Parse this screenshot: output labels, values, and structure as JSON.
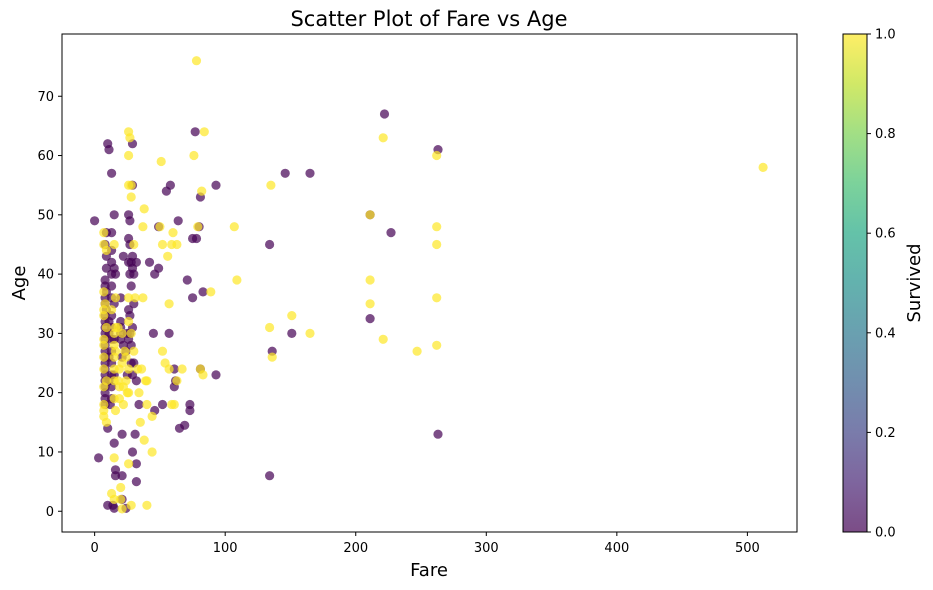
{
  "chart_data": {
    "type": "scatter",
    "title": "Scatter Plot of Fare vs Age",
    "xlabel": "Fare",
    "ylabel": "Age",
    "xlim": [
      -25,
      538
    ],
    "ylim": [
      -3.5,
      80.5
    ],
    "xticks": [
      0,
      100,
      200,
      300,
      400,
      500
    ],
    "yticks": [
      0,
      10,
      20,
      30,
      40,
      50,
      60,
      70
    ],
    "grid": false,
    "colorbar": {
      "label": "Survived",
      "range": [
        0.0,
        1.0
      ],
      "ticks": [
        "0.0",
        "0.2",
        "0.4",
        "0.6",
        "0.8",
        "1.0"
      ],
      "colormap": "viridis"
    },
    "marker_alpha": 0.7,
    "colors": {
      "not_survived": "#440154",
      "survived": "#fde725"
    },
    "series": [
      {
        "survived": 0,
        "points": [
          [
            0,
            49
          ],
          [
            3,
            9
          ],
          [
            8,
            45
          ],
          [
            8,
            39
          ],
          [
            8,
            38
          ],
          [
            8,
            36
          ],
          [
            8,
            35
          ],
          [
            8,
            33
          ],
          [
            8,
            32
          ],
          [
            8,
            31
          ],
          [
            8,
            30
          ],
          [
            8,
            29
          ],
          [
            8,
            28
          ],
          [
            8,
            27
          ],
          [
            8,
            26
          ],
          [
            8,
            25
          ],
          [
            8,
            24
          ],
          [
            8,
            23
          ],
          [
            8,
            22
          ],
          [
            8,
            21
          ],
          [
            8,
            20
          ],
          [
            8,
            19
          ],
          [
            8,
            18
          ],
          [
            9,
            47
          ],
          [
            9,
            43
          ],
          [
            9,
            41
          ],
          [
            9,
            37
          ],
          [
            9,
            34
          ],
          [
            10,
            62
          ],
          [
            10,
            14
          ],
          [
            10,
            1
          ],
          [
            11,
            61
          ],
          [
            11,
            32
          ],
          [
            11,
            30
          ],
          [
            11,
            26
          ],
          [
            11,
            22
          ],
          [
            12,
            18
          ],
          [
            13,
            57
          ],
          [
            13,
            47
          ],
          [
            13,
            44
          ],
          [
            13,
            42
          ],
          [
            13,
            40
          ],
          [
            13,
            38
          ],
          [
            13,
            36
          ],
          [
            13,
            33
          ],
          [
            13,
            31
          ],
          [
            13,
            29
          ],
          [
            13,
            27
          ],
          [
            13,
            25
          ],
          [
            13,
            23
          ],
          [
            13,
            21
          ],
          [
            13,
            19
          ],
          [
            14,
            1
          ],
          [
            15,
            50
          ],
          [
            15,
            41
          ],
          [
            15,
            35
          ],
          [
            15,
            29
          ],
          [
            15,
            23
          ],
          [
            15,
            11.5
          ],
          [
            15,
            0.5
          ],
          [
            16,
            40
          ],
          [
            16,
            7
          ],
          [
            16,
            6
          ],
          [
            20,
            36
          ],
          [
            20,
            32
          ],
          [
            20,
            31
          ],
          [
            20,
            30
          ],
          [
            20,
            29
          ],
          [
            21,
            26
          ],
          [
            21,
            13
          ],
          [
            21,
            6
          ],
          [
            21,
            2
          ],
          [
            22,
            43
          ],
          [
            22,
            28
          ],
          [
            24,
            27
          ],
          [
            24,
            0.5
          ],
          [
            25,
            30
          ],
          [
            25,
            23
          ],
          [
            26,
            50
          ],
          [
            26,
            46
          ],
          [
            26,
            42
          ],
          [
            26,
            34
          ],
          [
            26,
            29
          ],
          [
            27,
            49
          ],
          [
            27,
            45
          ],
          [
            27,
            40
          ],
          [
            27,
            33
          ],
          [
            27,
            30
          ],
          [
            28,
            42
          ],
          [
            28,
            38
          ],
          [
            28,
            28
          ],
          [
            28,
            25
          ],
          [
            29,
            62
          ],
          [
            29,
            55
          ],
          [
            29,
            43
          ],
          [
            29,
            41
          ],
          [
            29,
            31
          ],
          [
            29,
            23
          ],
          [
            29,
            10
          ],
          [
            30,
            40
          ],
          [
            30,
            35
          ],
          [
            30,
            25
          ],
          [
            31,
            13
          ],
          [
            32,
            42
          ],
          [
            32,
            22
          ],
          [
            32,
            8
          ],
          [
            32,
            5
          ],
          [
            34,
            18
          ],
          [
            42,
            42
          ],
          [
            45,
            30
          ],
          [
            46,
            40
          ],
          [
            46,
            17
          ],
          [
            49,
            48
          ],
          [
            49,
            41
          ],
          [
            52,
            18
          ],
          [
            55,
            54
          ],
          [
            57,
            30
          ],
          [
            58,
            55
          ],
          [
            61,
            24
          ],
          [
            61,
            21
          ],
          [
            62,
            22
          ],
          [
            64,
            49
          ],
          [
            65,
            14
          ],
          [
            69,
            14.5
          ],
          [
            71,
            39
          ],
          [
            73,
            18
          ],
          [
            73,
            17
          ],
          [
            75,
            36
          ],
          [
            75,
            46
          ],
          [
            77,
            64
          ],
          [
            78,
            46
          ],
          [
            80,
            48
          ],
          [
            81,
            53
          ],
          [
            81,
            24
          ],
          [
            83,
            37
          ],
          [
            93,
            55
          ],
          [
            93,
            23
          ],
          [
            134,
            45
          ],
          [
            134,
            6
          ],
          [
            136,
            27
          ],
          [
            146,
            57
          ],
          [
            151,
            30
          ],
          [
            165,
            57
          ],
          [
            211,
            50
          ],
          [
            211,
            32.5
          ],
          [
            222,
            67
          ],
          [
            227,
            47
          ],
          [
            263,
            61
          ],
          [
            263,
            13
          ]
        ]
      },
      {
        "survived": 1,
        "points": [
          [
            7,
            47
          ],
          [
            7,
            45
          ],
          [
            7,
            37
          ],
          [
            7,
            34
          ],
          [
            7,
            33
          ],
          [
            7,
            29
          ],
          [
            7,
            28
          ],
          [
            7,
            26
          ],
          [
            7,
            24
          ],
          [
            7,
            21
          ],
          [
            7,
            18
          ],
          [
            7,
            17
          ],
          [
            7,
            16
          ],
          [
            8,
            35
          ],
          [
            9,
            44
          ],
          [
            9,
            31
          ],
          [
            9,
            22
          ],
          [
            9,
            15
          ],
          [
            13,
            3
          ],
          [
            13,
            34
          ],
          [
            15,
            45
          ],
          [
            15,
            30
          ],
          [
            15,
            28
          ],
          [
            15,
            26
          ],
          [
            15,
            24
          ],
          [
            15,
            22
          ],
          [
            15,
            19
          ],
          [
            15,
            9
          ],
          [
            15,
            2
          ],
          [
            16,
            36
          ],
          [
            16,
            31
          ],
          [
            16,
            27
          ],
          [
            16,
            17
          ],
          [
            18,
            31
          ],
          [
            18,
            22
          ],
          [
            19,
            24
          ],
          [
            19,
            21
          ],
          [
            19,
            19
          ],
          [
            20,
            4
          ],
          [
            20,
            2
          ],
          [
            21,
            0.4
          ],
          [
            21,
            30
          ],
          [
            21,
            25
          ],
          [
            22,
            21
          ],
          [
            22,
            18
          ],
          [
            23,
            27
          ],
          [
            24,
            26
          ],
          [
            24,
            22
          ],
          [
            25,
            20
          ],
          [
            26,
            64
          ],
          [
            26,
            60
          ],
          [
            26,
            55
          ],
          [
            26,
            36
          ],
          [
            26,
            32
          ],
          [
            26,
            24
          ],
          [
            26,
            20
          ],
          [
            26,
            8
          ],
          [
            27,
            63
          ],
          [
            28,
            55
          ],
          [
            28,
            53
          ],
          [
            28,
            30
          ],
          [
            28,
            1
          ],
          [
            30,
            45
          ],
          [
            30,
            27
          ],
          [
            31,
            36
          ],
          [
            33,
            24
          ],
          [
            34,
            20
          ],
          [
            35,
            15
          ],
          [
            36,
            24
          ],
          [
            37,
            48
          ],
          [
            37,
            36
          ],
          [
            38,
            12
          ],
          [
            38,
            51
          ],
          [
            39,
            22
          ],
          [
            40,
            1
          ],
          [
            40,
            18
          ],
          [
            40,
            22
          ],
          [
            44,
            16
          ],
          [
            44,
            10
          ],
          [
            50,
            48
          ],
          [
            51,
            59
          ],
          [
            52,
            27
          ],
          [
            52,
            45
          ],
          [
            54,
            25
          ],
          [
            56,
            43
          ],
          [
            57,
            35
          ],
          [
            57,
            24
          ],
          [
            59,
            45
          ],
          [
            59,
            18
          ],
          [
            60,
            47
          ],
          [
            61,
            18
          ],
          [
            63,
            45
          ],
          [
            63,
            22
          ],
          [
            67,
            24
          ],
          [
            76,
            60
          ],
          [
            78,
            76
          ],
          [
            79,
            48
          ],
          [
            81,
            24
          ],
          [
            82,
            54
          ],
          [
            83,
            23
          ],
          [
            84,
            64
          ],
          [
            89,
            37
          ],
          [
            107,
            48
          ],
          [
            109,
            39
          ],
          [
            134,
            31
          ],
          [
            135,
            55
          ],
          [
            136,
            26
          ],
          [
            151,
            33
          ],
          [
            165,
            30
          ],
          [
            211,
            50
          ],
          [
            211,
            39
          ],
          [
            211,
            35
          ],
          [
            221,
            63
          ],
          [
            221,
            29
          ],
          [
            247,
            27
          ],
          [
            262,
            60
          ],
          [
            262,
            48
          ],
          [
            262,
            45
          ],
          [
            262,
            36
          ],
          [
            262,
            28
          ],
          [
            512,
            58
          ]
        ]
      }
    ]
  }
}
